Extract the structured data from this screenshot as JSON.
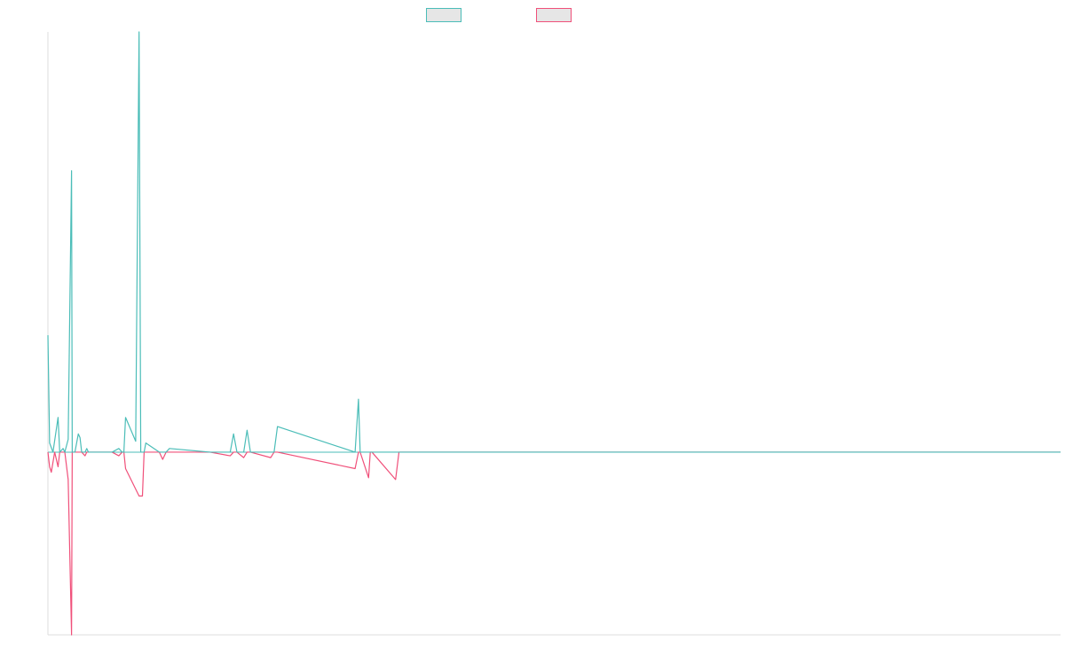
{
  "chart_data": {
    "type": "line",
    "title": "",
    "xlabel": "",
    "ylabel": "",
    "ylim": [
      -1.0,
      2.3
    ],
    "xlim": [
      0,
      300
    ],
    "grid": false,
    "legend_position": "top-center",
    "series": [
      {
        "color": "#4bbdb8",
        "x": [
          0,
          0.5,
          1.5,
          3,
          3.5,
          4.5,
          5,
          6,
          7,
          7.2,
          8,
          9,
          9.5,
          10,
          11,
          11.5,
          12,
          13,
          19,
          21,
          22,
          22.5,
          23,
          26,
          27,
          27.5,
          28,
          28.5,
          29,
          33,
          34,
          35,
          36,
          48,
          54,
          55,
          56,
          57.5,
          58,
          59,
          60,
          66,
          67,
          68,
          91,
          92,
          92.5,
          93,
          94,
          95,
          95.5,
          96,
          97,
          103,
          104,
          105,
          300
        ],
        "values": [
          0.64,
          0.05,
          0.0,
          0.19,
          0.0,
          0.02,
          0.0,
          0.07,
          1.54,
          0.0,
          0.0,
          0.1,
          0.08,
          0.0,
          0.0,
          0.02,
          0.0,
          0.0,
          0.0,
          0.02,
          0.0,
          0.0,
          0.19,
          0.06,
          2.3,
          0.0,
          0.0,
          0.0,
          0.05,
          0.0,
          0.0,
          0.0,
          0.02,
          0.0,
          0.0,
          0.1,
          0.0,
          0.0,
          0.0,
          0.12,
          0.0,
          0.0,
          0.0,
          0.14,
          0.0,
          0.29,
          0.0,
          0.0,
          0.0,
          0.0,
          0.0,
          0.0,
          0.0,
          0.0,
          0.0,
          0.0,
          0.0
        ]
      },
      {
        "color": "#f0507a",
        "x": [
          0,
          0.5,
          1,
          2,
          3,
          3.5,
          4,
          5,
          6,
          7,
          7.2,
          8,
          9,
          10,
          11,
          11.5,
          12,
          13,
          19,
          21,
          22,
          22.5,
          23,
          27,
          28,
          28.5,
          29,
          33,
          34,
          35,
          36,
          48,
          54,
          55,
          56,
          58,
          59,
          60,
          66,
          67,
          68,
          91,
          92,
          92.5,
          95,
          95.5,
          96,
          103,
          104,
          105,
          300
        ],
        "values": [
          0.0,
          -0.08,
          -0.11,
          0.0,
          -0.08,
          0.0,
          0.0,
          0.0,
          -0.15,
          -1.0,
          0.0,
          0.0,
          0.0,
          0.0,
          -0.02,
          0.0,
          0.0,
          0.0,
          0.0,
          -0.02,
          0.0,
          0.0,
          -0.09,
          -0.24,
          -0.24,
          0.0,
          0.0,
          0.0,
          -0.04,
          0.0,
          0.0,
          0.0,
          -0.02,
          0.0,
          0.0,
          -0.03,
          0.0,
          0.0,
          -0.03,
          0.0,
          0.0,
          -0.09,
          0.0,
          0.0,
          -0.14,
          0.0,
          0.0,
          -0.15,
          0.0,
          0.0,
          0.0
        ]
      }
    ]
  }
}
